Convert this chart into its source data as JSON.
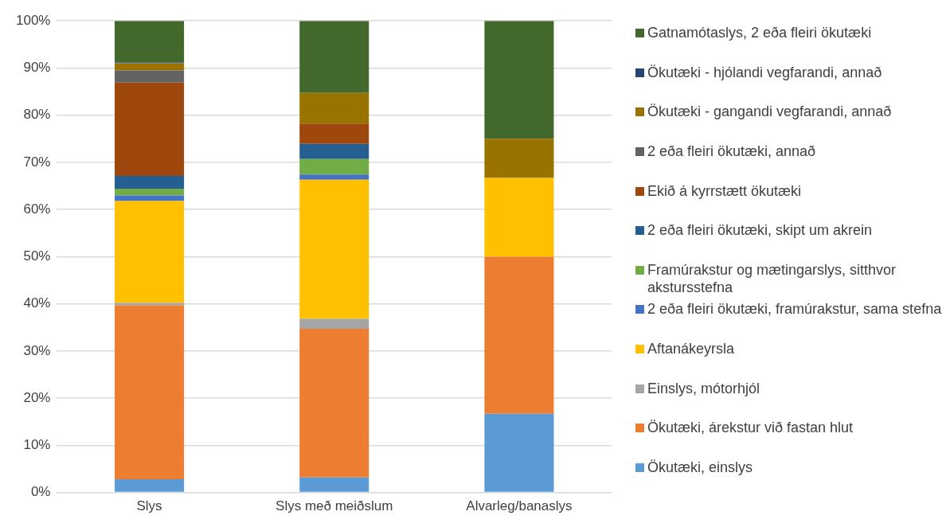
{
  "chart_data": {
    "type": "bar",
    "stacked": true,
    "categories": [
      "Slys",
      "Slys með meiðslum",
      "Alvarleg/banaslys"
    ],
    "series": [
      {
        "name": "Ökutæki, einslys",
        "color": "#5b9bd5",
        "values": [
          2.8,
          3.2,
          16.7
        ]
      },
      {
        "name": "Ökutæki, árekstur við fastan hlut",
        "color": "#ed7d31",
        "values": [
          36.9,
          31.5,
          33.3
        ]
      },
      {
        "name": "Einslys, mótorhjól",
        "color": "#a5a5a5",
        "values": [
          0.5,
          2.1,
          0
        ]
      },
      {
        "name": "Aftanákeyrsla",
        "color": "#ffc000",
        "values": [
          21.6,
          29.5,
          16.7
        ]
      },
      {
        "name": "2 eða fleiri ökutæki, framúrakstur, sama stefna",
        "color": "#4472c4",
        "values": [
          1.2,
          1.1,
          0
        ]
      },
      {
        "name": "Framúrakstur og mætingarslys, sitthvor akstursstefna",
        "color": "#70ad47",
        "values": [
          1.4,
          3.3,
          0
        ]
      },
      {
        "name": "2 eða fleiri ökutæki, skipt um akrein",
        "color": "#255e91",
        "values": [
          2.7,
          3.2,
          0
        ]
      },
      {
        "name": "Ekið á kyrrstætt ökutæki",
        "color": "#9e480e",
        "values": [
          19.8,
          4.3,
          0
        ]
      },
      {
        "name": "2 eða fleiri ökutæki, annað",
        "color": "#636363",
        "values": [
          2.6,
          0,
          0
        ]
      },
      {
        "name": "Ökutæki - gangandi vegfarandi, annað",
        "color": "#997300",
        "values": [
          1.5,
          6.5,
          8.3
        ]
      },
      {
        "name": "Ökutæki - hjólandi vegfarandi, annað",
        "color": "#264478",
        "values": [
          0.2,
          0,
          0
        ]
      },
      {
        "name": "Gatnamótaslys, 2 eða fleiri ökutæki",
        "color": "#43682b",
        "values": [
          8.8,
          15.3,
          25
        ]
      }
    ],
    "ylim": [
      0,
      100
    ],
    "yticks": [
      {
        "value": 0,
        "label": "0%"
      },
      {
        "value": 10,
        "label": "10%"
      },
      {
        "value": 20,
        "label": "20%"
      },
      {
        "value": 30,
        "label": "30%"
      },
      {
        "value": 40,
        "label": "40%"
      },
      {
        "value": 50,
        "label": "50%"
      },
      {
        "value": 60,
        "label": "60%"
      },
      {
        "value": 70,
        "label": "70%"
      },
      {
        "value": 80,
        "label": "80%"
      },
      {
        "value": 90,
        "label": "90%"
      },
      {
        "value": 100,
        "label": "100%"
      }
    ],
    "grid": "y",
    "legend": "right"
  }
}
